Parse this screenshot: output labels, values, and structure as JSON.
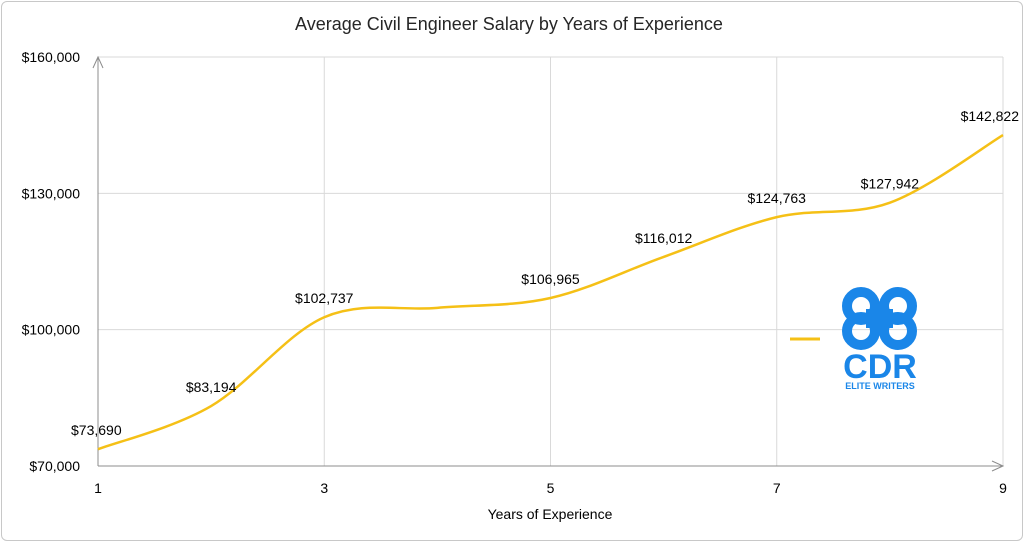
{
  "chart_data": {
    "type": "line",
    "title": "Average Civil Engineer Salary by Years of Experience",
    "xlabel": "Years of Experience",
    "ylabel": "",
    "x": [
      1,
      2,
      3,
      4,
      5,
      6,
      7,
      8,
      9
    ],
    "series": [
      {
        "values": [
          73690,
          83194,
          102737,
          104800,
          106965,
          116012,
          124763,
          127942,
          142822
        ],
        "labels": [
          "$73,690",
          "$83,194",
          "$102,737",
          "",
          "$106,965",
          "$116,012",
          "$124,763",
          "$127,942",
          "$142,822"
        ],
        "color": "#f5c016",
        "smooth": true
      }
    ],
    "xlim": [
      1,
      9
    ],
    "ylim": [
      70000,
      160000
    ],
    "xticks": [
      1,
      3,
      5,
      7,
      9
    ],
    "xtick_labels": [
      "1",
      "3",
      "5",
      "7",
      "9"
    ],
    "yticks": [
      70000,
      100000,
      130000,
      160000
    ],
    "ytick_labels": [
      "$70,000",
      "$100,000",
      "$130,000",
      "$160,000"
    ],
    "grid": true,
    "legend_placement": "right"
  },
  "logo": {
    "icon": "cdr-logo-icon",
    "text": "CDR",
    "subtext": "ELITE WRITERS",
    "color": "#1a86e8"
  }
}
